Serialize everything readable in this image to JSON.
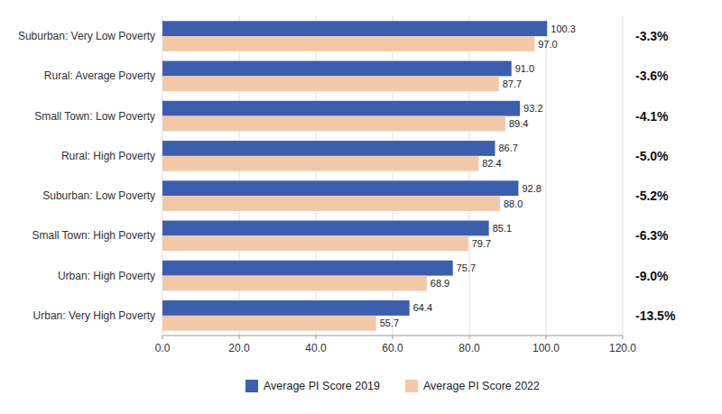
{
  "chart_data": {
    "type": "bar",
    "orientation": "horizontal",
    "categories": [
      "Suburban: Very Low Poverty",
      "Rural: Average Poverty",
      "Small Town: Low Poverty",
      "Rural: High Poverty",
      "Suburban: Low Poverty",
      "Small Town: High Poverty",
      "Urban: High Poverty",
      "Urban: Very High Poverty"
    ],
    "series": [
      {
        "name": "Average PI Score 2019",
        "color": "#3B5EAE",
        "values": [
          100.3,
          91.0,
          93.2,
          86.7,
          92.8,
          85.1,
          75.7,
          64.4
        ],
        "value_labels": [
          "100.3",
          "91.0",
          "93.2",
          "86.7",
          "92.8",
          "85.1",
          "75.7",
          "64.4"
        ]
      },
      {
        "name": "Average PI Score 2022",
        "color": "#F2C9A8",
        "values": [
          97.0,
          87.7,
          89.4,
          82.4,
          88.0,
          79.7,
          68.9,
          55.7
        ],
        "value_labels": [
          "97.0",
          "87.7",
          "89.4",
          "82.4",
          "88.0",
          "79.7",
          "68.9",
          "55.7"
        ]
      }
    ],
    "annotations": [
      "-3.3%",
      "-3.6%",
      "-4.1%",
      "-5.0%",
      "-5.2%",
      "-6.3%",
      "-9.0%",
      "-13.5%"
    ],
    "xlim": [
      0,
      120
    ],
    "xticks": [
      {
        "value": 0,
        "label": "0.0"
      },
      {
        "value": 20,
        "label": "20.0"
      },
      {
        "value": 40,
        "label": "40.0"
      },
      {
        "value": 60,
        "label": "60.0"
      },
      {
        "value": 80,
        "label": "80.0"
      },
      {
        "value": 100,
        "label": "100.0"
      },
      {
        "value": 120,
        "label": "120.0"
      }
    ],
    "grid": true,
    "data_labels": true,
    "legend": "bottom"
  }
}
